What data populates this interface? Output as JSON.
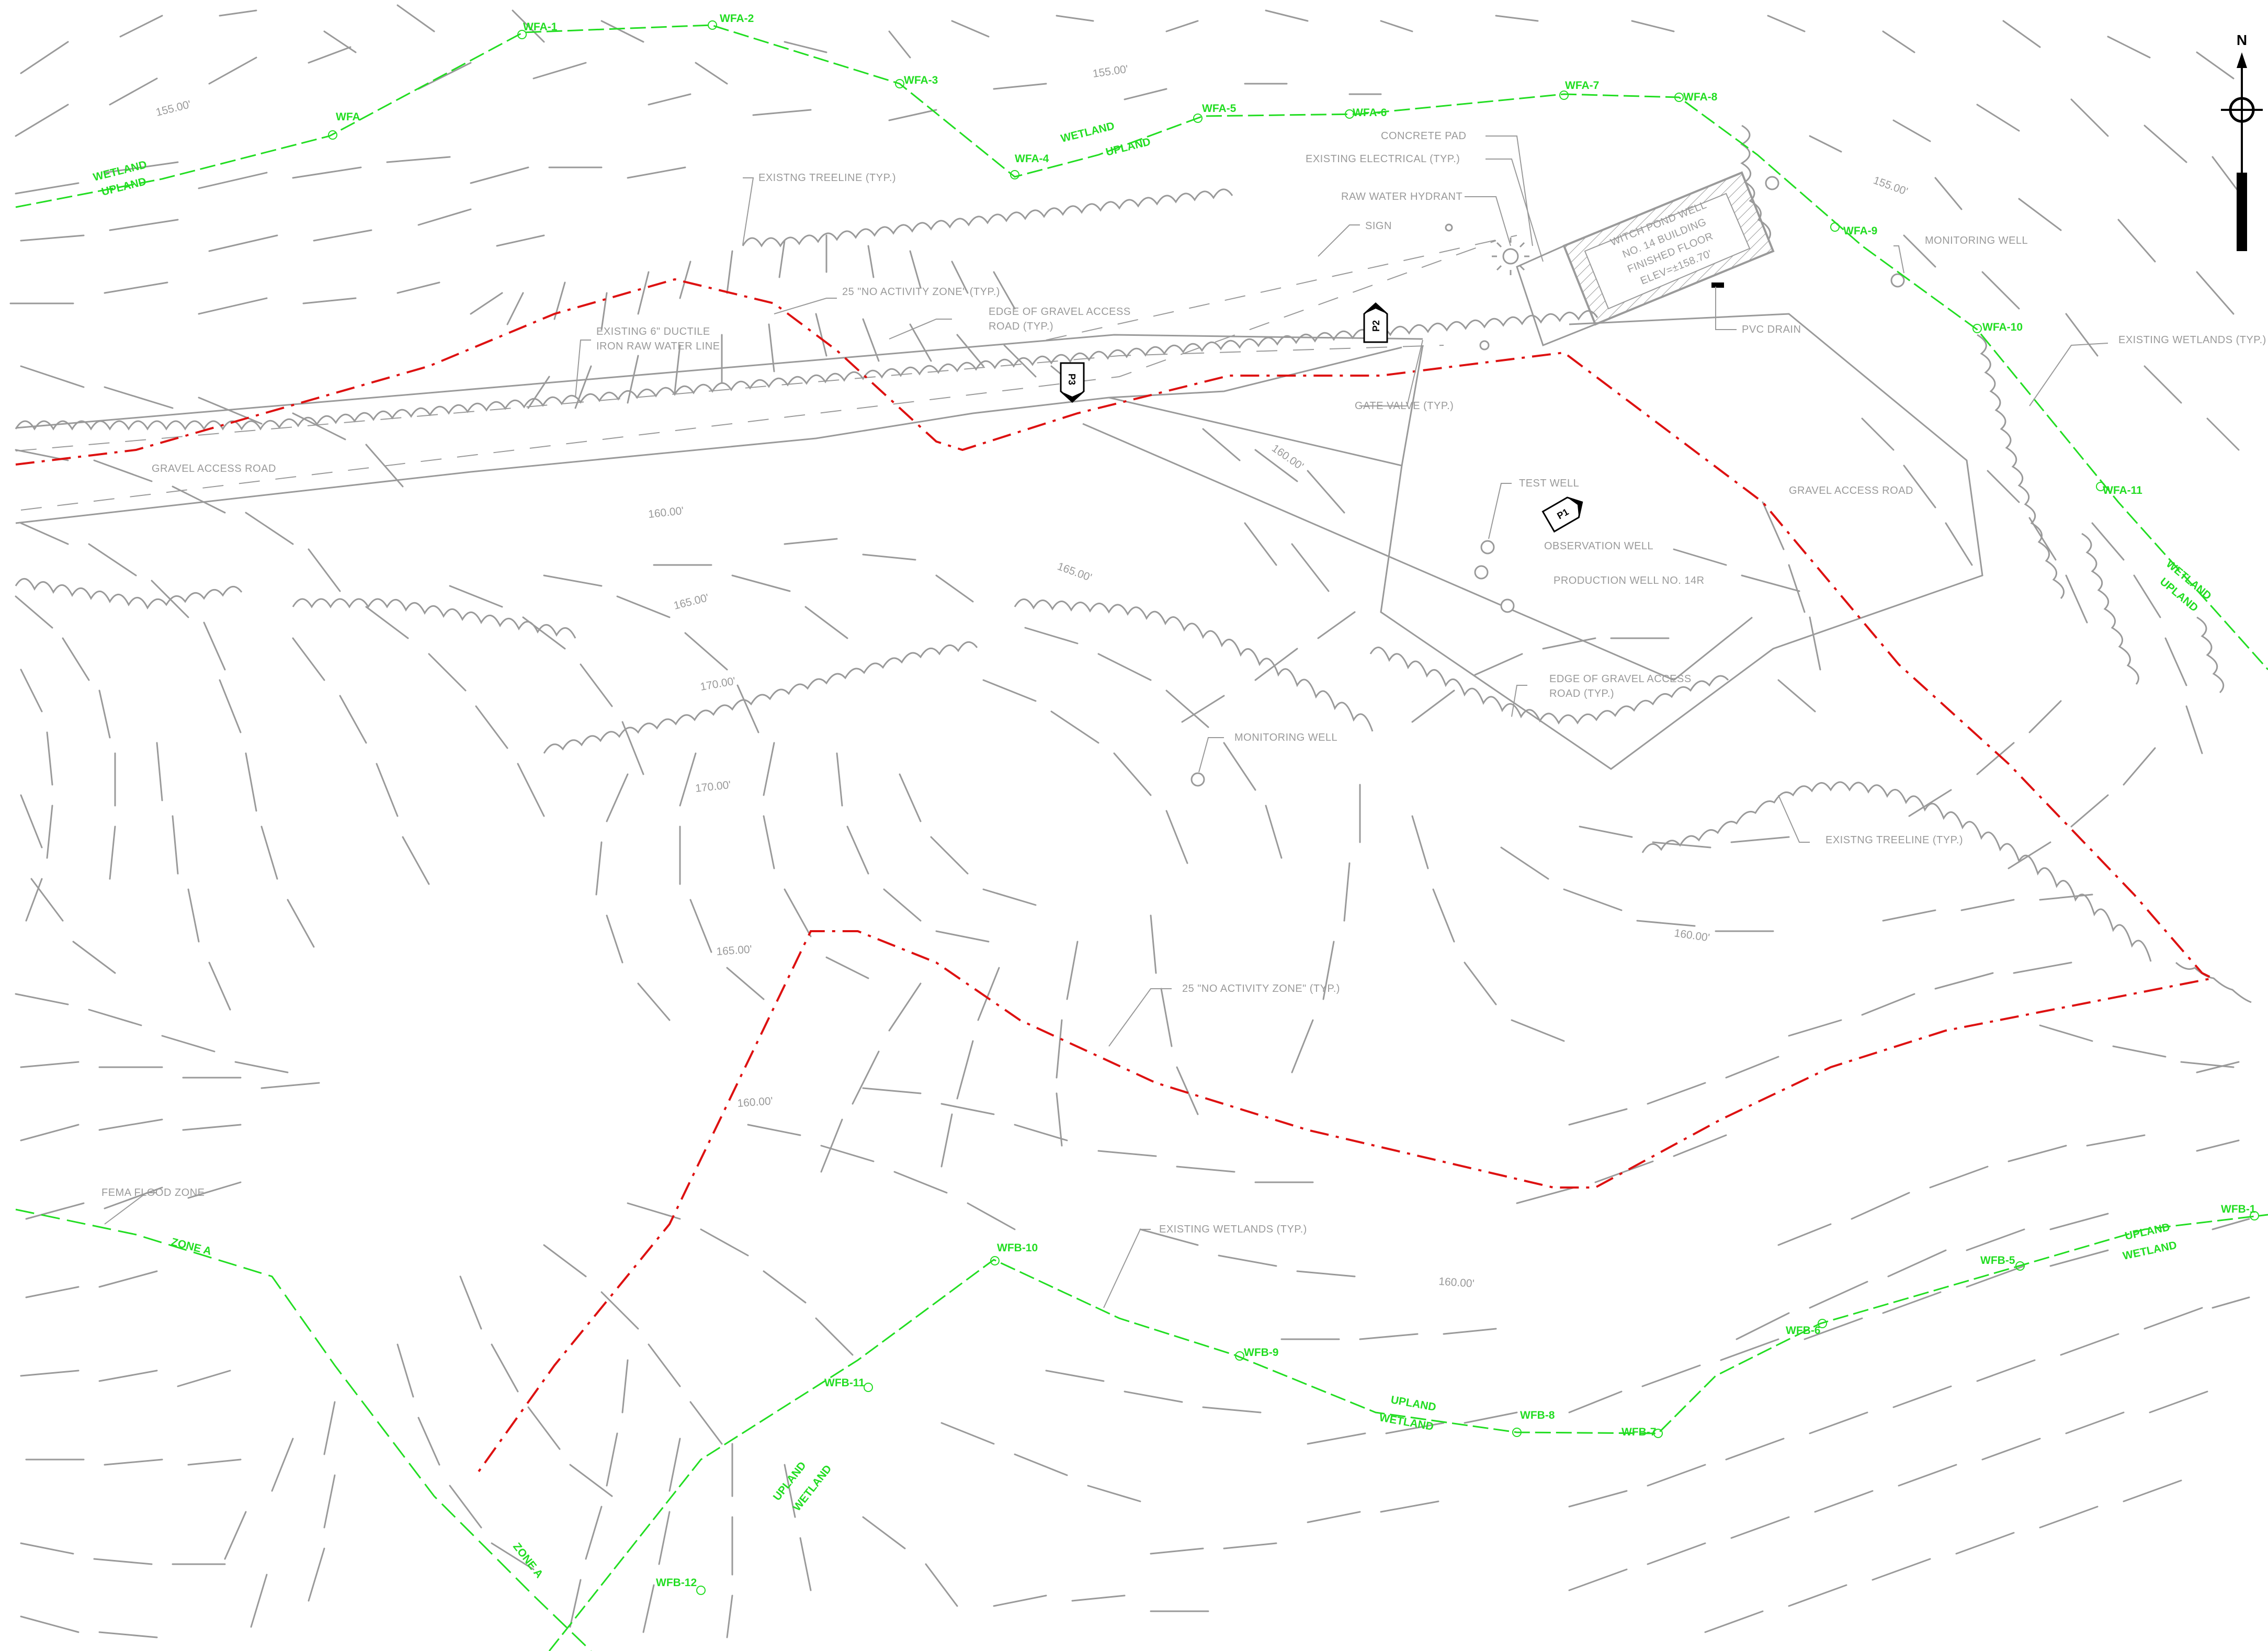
{
  "colors": {
    "wetland_line": "#22dd22",
    "no_activity_line": "#dd1111",
    "linework": "#9a9a9a",
    "background": "#ffffff"
  },
  "wetland_flags_a": [
    "WFA-1",
    "WFA-2",
    "WFA-3",
    "WFA",
    "WFA-4",
    "WFA-5",
    "WFA-6",
    "WFA-7",
    "WFA-8",
    "WFA-9",
    "WFA-10",
    "WFA-11"
  ],
  "wetland_flags_b": [
    "WFB-1",
    "WFB-5",
    "WFB-6",
    "WFB-7",
    "WFB-8",
    "WFB-9",
    "WFB-10",
    "WFB-11",
    "WFB-12"
  ],
  "boundary_words": {
    "wetland": "WETLAND",
    "upland": "UPLAND"
  },
  "zones": {
    "zone_a": "ZONE A"
  },
  "contour_labels": [
    "155.00'",
    "155.00'",
    "155.00'",
    "160.00'",
    "160.00'",
    "165.00'",
    "165.00'",
    "170.00'",
    "170.00'",
    "165.00'",
    "160.00'",
    "160.00'",
    "160.00'"
  ],
  "annotations": {
    "existing_treeline": "EXISTNG TREELINE (TYP.)",
    "no_activity_zone": "25 \"NO ACTIVITY ZONE\" (TYP.)",
    "edge_gravel_road_1": "EDGE OF GRAVEL ACCESS",
    "edge_gravel_road_2": "ROAD (TYP.)",
    "ductile_1": "EXISTING 6\" DUCTILE",
    "ductile_2": "IRON RAW WATER LINE",
    "gravel_access_road": "GRAVEL ACCESS ROAD",
    "concrete_pad": "CONCRETE PAD",
    "existing_electrical": "EXISTING ELECTRICAL (TYP.)",
    "raw_water_hydrant": "RAW WATER HYDRANT",
    "sign": "SIGN",
    "building_1": "WITCH POND WELL",
    "building_2": "NO. 14 BUILDING",
    "building_3": "FINISHED FLOOR",
    "building_4": "ELEV=±158.70'",
    "pvc_drain": "PVC DRAIN",
    "gate_valve": "GATE VALVE (TYP.)",
    "monitoring_well": "MONITORING WELL",
    "existing_wetlands": "EXISTING WETLANDS (TYP.)",
    "test_well": "TEST WELL",
    "observation_well": "OBSERVATION WELL",
    "production_well": "PRODUCTION WELL NO. 14R",
    "fema_flood_zone": "FEMA FLOOD ZONE"
  },
  "photo_points": [
    "P1",
    "P2",
    "P3"
  ],
  "north_arrow": "N"
}
